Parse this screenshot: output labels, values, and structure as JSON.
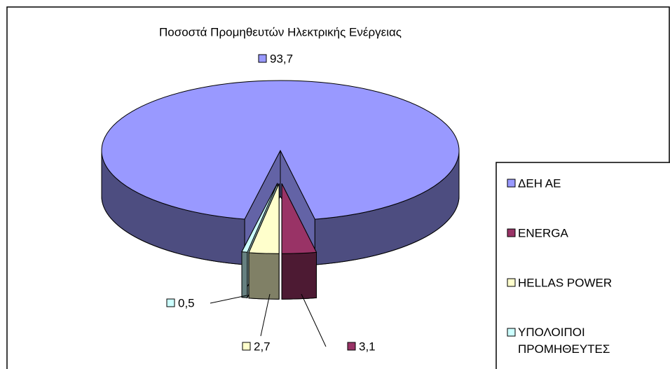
{
  "chart_data": {
    "type": "pie3d",
    "title": "Ποσοστά Προμηθευτών Ηλεκτρικής Ενέργειας",
    "categories": [
      "ΔΕΗ ΑΕ",
      "ENERGA",
      "HELLAS POWER",
      "ΥΠΟΛΟΙΠΟΙ ΠΡΟΜΗΘΕΥΤΕΣ"
    ],
    "values": [
      93.7,
      3.1,
      2.7,
      0.5
    ],
    "value_labels": [
      "93,7",
      "3,1",
      "2,7",
      "0,5"
    ],
    "colors": [
      "#9999ff",
      "#993366",
      "#ffffcc",
      "#ccffff"
    ],
    "legend": "right"
  }
}
